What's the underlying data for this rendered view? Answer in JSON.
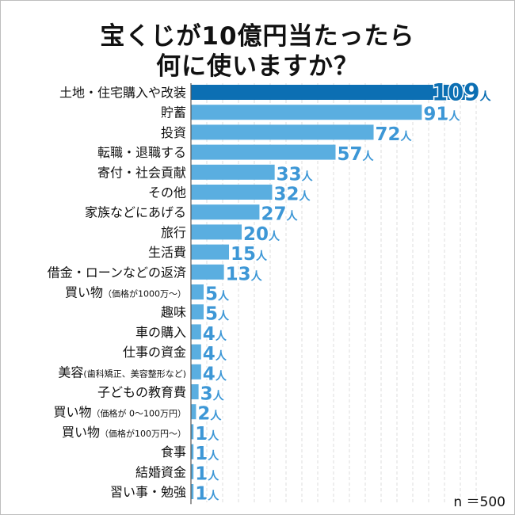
{
  "title": {
    "line1": "宝くじが10億円当たったら",
    "line2": "何に使いますか？"
  },
  "note": "n ＝500",
  "colors": {
    "highlight_bar": "#0c6fb3",
    "bar": "#5aaee0",
    "label_text": "#111111",
    "value_text": "#3d97d6",
    "grid": "#dcdcdc",
    "axis": "#555555"
  },
  "chart_data": {
    "type": "bar",
    "orientation": "horizontal",
    "title": "宝くじが10億円当たったら何に使いますか？",
    "unit": "人",
    "xlim": [
      0,
      109
    ],
    "grid": true,
    "highlight": 0,
    "categories": [
      {
        "main": "土地・住宅購入や改装",
        "sub": ""
      },
      {
        "main": "貯蓄",
        "sub": ""
      },
      {
        "main": "投資",
        "sub": ""
      },
      {
        "main": "転職・退職する",
        "sub": ""
      },
      {
        "main": "寄付・社会貢献",
        "sub": ""
      },
      {
        "main": "その他",
        "sub": ""
      },
      {
        "main": "家族などにあげる",
        "sub": ""
      },
      {
        "main": "旅行",
        "sub": ""
      },
      {
        "main": "生活費",
        "sub": ""
      },
      {
        "main": "借金・ローンなどの返済",
        "sub": ""
      },
      {
        "main": "買い物",
        "sub": "（価格が1000万〜）"
      },
      {
        "main": "趣味",
        "sub": ""
      },
      {
        "main": "車の購入",
        "sub": ""
      },
      {
        "main": "仕事の資金",
        "sub": ""
      },
      {
        "main": "美容",
        "sub": "(歯科矯正、美容整形など)"
      },
      {
        "main": "子どもの教育費",
        "sub": ""
      },
      {
        "main": "買い物",
        "sub": "（価格が 0〜100万円）"
      },
      {
        "main": "買い物",
        "sub": "（価格が100万円〜）"
      },
      {
        "main": "食事",
        "sub": ""
      },
      {
        "main": "結婚資金",
        "sub": ""
      },
      {
        "main": "習い事・勉強",
        "sub": ""
      }
    ],
    "values": [
      109,
      91,
      72,
      57,
      33,
      32,
      27,
      20,
      15,
      13,
      5,
      5,
      4,
      4,
      4,
      3,
      2,
      1,
      1,
      1,
      1
    ]
  }
}
